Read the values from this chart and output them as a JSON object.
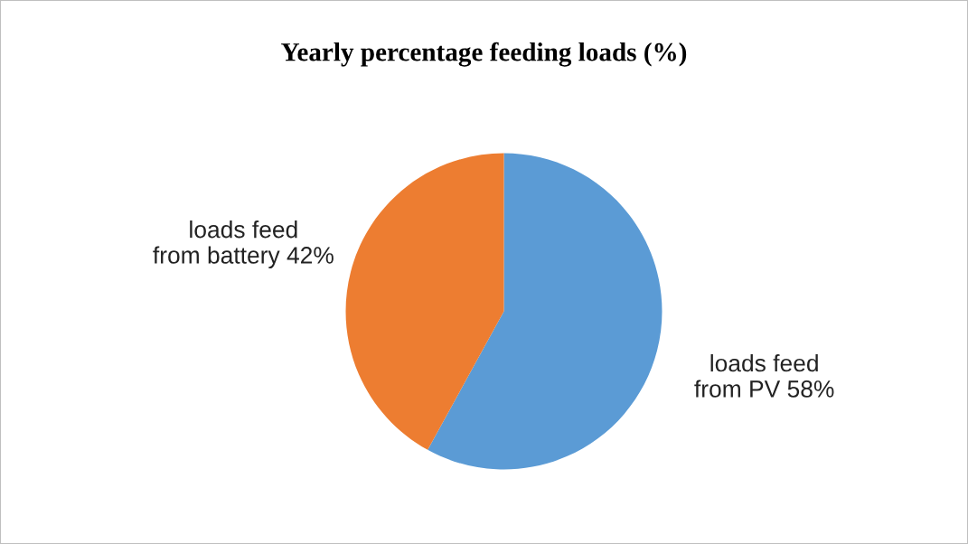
{
  "chart_data": {
    "type": "pie",
    "title": "Yearly percentage feeding loads (%)",
    "categories": [
      "loads feed\nfrom PV",
      "loads feed\nfrom battery"
    ],
    "values": [
      58,
      42
    ],
    "value_labels": [
      "58%",
      "42%"
    ],
    "colors": [
      "#5b9bd5",
      "#ed7d31"
    ]
  }
}
